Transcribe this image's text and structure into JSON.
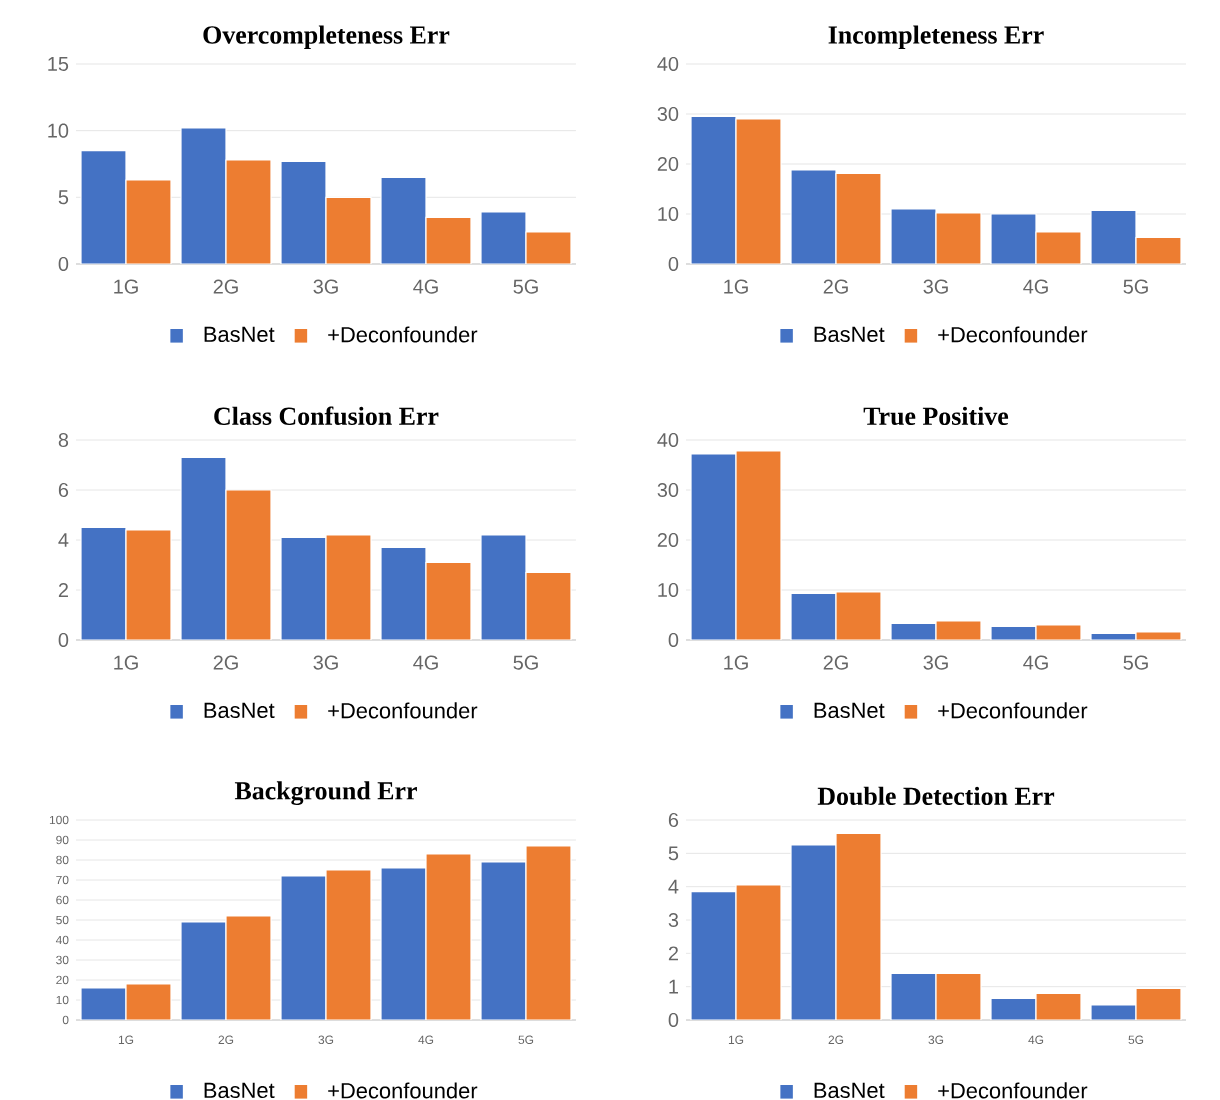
{
  "chart_data": [
    {
      "type": "bar",
      "title": "Overcompleteness Err",
      "categories": [
        "1G",
        "2G",
        "3G",
        "4G",
        "5G"
      ],
      "ylim": [
        0,
        15
      ],
      "yticks": [
        0,
        5,
        10,
        15
      ],
      "grid": "y",
      "legend": "bottom",
      "series": [
        {
          "name": "BasNet",
          "color": "#4472c4",
          "values": [
            8.5,
            10.2,
            7.7,
            6.5,
            3.9
          ]
        },
        {
          "name": "+Deconfounder",
          "color": "#ed7d31",
          "values": [
            6.3,
            7.8,
            5.0,
            3.5,
            2.4
          ]
        }
      ]
    },
    {
      "type": "bar",
      "title": "Incompleteness Err",
      "categories": [
        "1G",
        "2G",
        "3G",
        "4G",
        "5G"
      ],
      "ylim": [
        0,
        40
      ],
      "yticks": [
        0,
        10,
        20,
        30,
        40
      ],
      "grid": "y",
      "legend": "bottom",
      "series": [
        {
          "name": "BasNet",
          "color": "#4472c4",
          "values": [
            29.5,
            18.8,
            11.0,
            10.0,
            10.7
          ]
        },
        {
          "name": "+Deconfounder",
          "color": "#ed7d31",
          "values": [
            29.0,
            18.1,
            10.2,
            6.4,
            5.3
          ]
        }
      ]
    },
    {
      "type": "bar",
      "title": "Class Confusion Err",
      "categories": [
        "1G",
        "2G",
        "3G",
        "4G",
        "5G"
      ],
      "ylim": [
        0,
        8
      ],
      "yticks": [
        0,
        2,
        4,
        6,
        8
      ],
      "grid": "y",
      "legend": "bottom",
      "series": [
        {
          "name": "BasNet",
          "color": "#4472c4",
          "values": [
            4.5,
            7.3,
            4.1,
            3.7,
            4.2
          ]
        },
        {
          "name": "+Deconfounder",
          "color": "#ed7d31",
          "values": [
            4.4,
            6.0,
            4.2,
            3.1,
            2.7
          ]
        }
      ]
    },
    {
      "type": "bar",
      "title": "True Positive",
      "categories": [
        "1G",
        "2G",
        "3G",
        "4G",
        "5G"
      ],
      "ylim": [
        0,
        40
      ],
      "yticks": [
        0,
        10,
        20,
        30,
        40
      ],
      "grid": "y",
      "legend": "bottom",
      "series": [
        {
          "name": "BasNet",
          "color": "#4472c4",
          "values": [
            37.2,
            9.3,
            3.3,
            2.7,
            1.3
          ]
        },
        {
          "name": "+Deconfounder",
          "color": "#ed7d31",
          "values": [
            37.8,
            9.6,
            3.8,
            3.0,
            1.6
          ]
        }
      ]
    },
    {
      "type": "bar",
      "title": "Background Err",
      "categories": [
        "1G",
        "2G",
        "3G",
        "4G",
        "5G"
      ],
      "ylim": [
        0,
        100
      ],
      "yticks": [
        0,
        10,
        20,
        30,
        40,
        50,
        60,
        70,
        80,
        90,
        100
      ],
      "grid": "y",
      "legend": "bottom",
      "series": [
        {
          "name": "BasNet",
          "color": "#4472c4",
          "values": [
            16,
            49,
            72,
            76,
            79
          ]
        },
        {
          "name": "+Deconfounder",
          "color": "#ed7d31",
          "values": [
            18,
            52,
            75,
            83,
            87
          ]
        }
      ]
    },
    {
      "type": "bar",
      "title": "Double Detection Err",
      "categories": [
        "1G",
        "2G",
        "3G",
        "4G",
        "5G"
      ],
      "ylim": [
        0,
        6
      ],
      "yticks": [
        0,
        1,
        2,
        3,
        4,
        5,
        6
      ],
      "grid": "y",
      "legend": "bottom",
      "series": [
        {
          "name": "BasNet",
          "color": "#4472c4",
          "values": [
            3.85,
            5.25,
            1.4,
            0.65,
            0.45
          ]
        },
        {
          "name": "+Deconfounder",
          "color": "#ed7d31",
          "values": [
            4.05,
            5.6,
            1.4,
            0.8,
            0.95
          ]
        }
      ]
    }
  ]
}
